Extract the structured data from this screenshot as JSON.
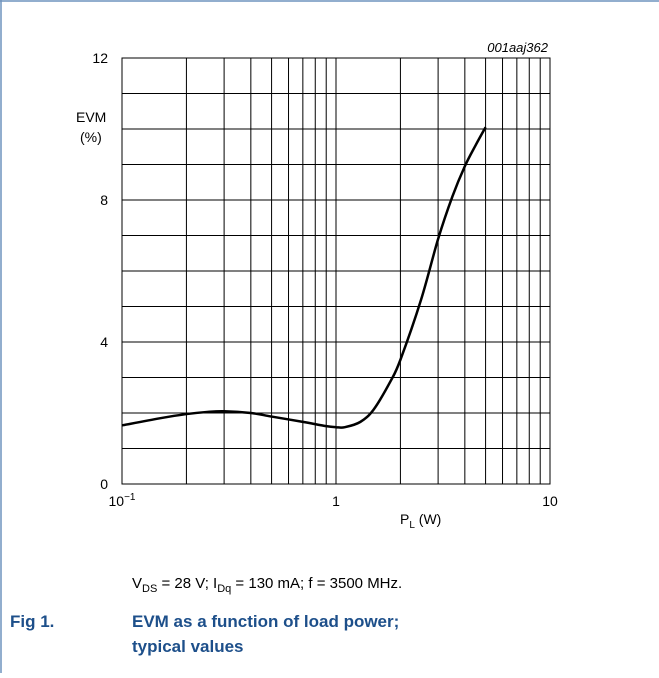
{
  "chart_data": {
    "type": "line",
    "code": "001aaj362",
    "y_label": [
      "EVM",
      "(%)"
    ],
    "x_label": [
      "P",
      "L",
      " (W)"
    ],
    "xscale": "log",
    "xlim": [
      0.1,
      10
    ],
    "xticks": [
      {
        "value": 0.1,
        "label": "10−1"
      },
      1,
      10
    ],
    "x_minor_ticks": [
      0.2,
      0.3,
      0.4,
      0.5,
      0.6,
      0.7,
      0.8,
      0.9,
      2,
      3,
      4,
      5,
      6,
      7,
      8,
      9
    ],
    "ylim": [
      0,
      12
    ],
    "yticks": [
      0,
      4,
      8,
      12
    ],
    "y_minor_ticks": [
      1,
      2,
      3,
      5,
      6,
      7,
      9,
      10,
      11
    ],
    "grid": true,
    "series": [
      {
        "color": "#000000",
        "x": [
          0.1,
          0.15,
          0.2,
          0.25,
          0.3,
          0.4,
          0.5,
          0.7,
          0.9,
          1.0,
          1.1,
          1.3,
          1.5,
          1.8,
          2.0,
          2.5,
          3.0,
          3.5,
          4.0,
          4.5,
          5.0
        ],
        "values": [
          1.65,
          1.85,
          1.97,
          2.03,
          2.05,
          2.0,
          1.9,
          1.75,
          1.63,
          1.6,
          1.6,
          1.75,
          2.1,
          2.9,
          3.5,
          5.2,
          6.9,
          8.1,
          8.95,
          9.55,
          10.05
        ]
      }
    ],
    "conditions": [
      "V",
      "DS",
      " = 28 V; I",
      "Dq",
      " = 130 mA; f = 3500 MHz."
    ],
    "figure_number": "Fig 1.",
    "figure_title": [
      "EVM as a function of load power;",
      "typical values"
    ]
  }
}
